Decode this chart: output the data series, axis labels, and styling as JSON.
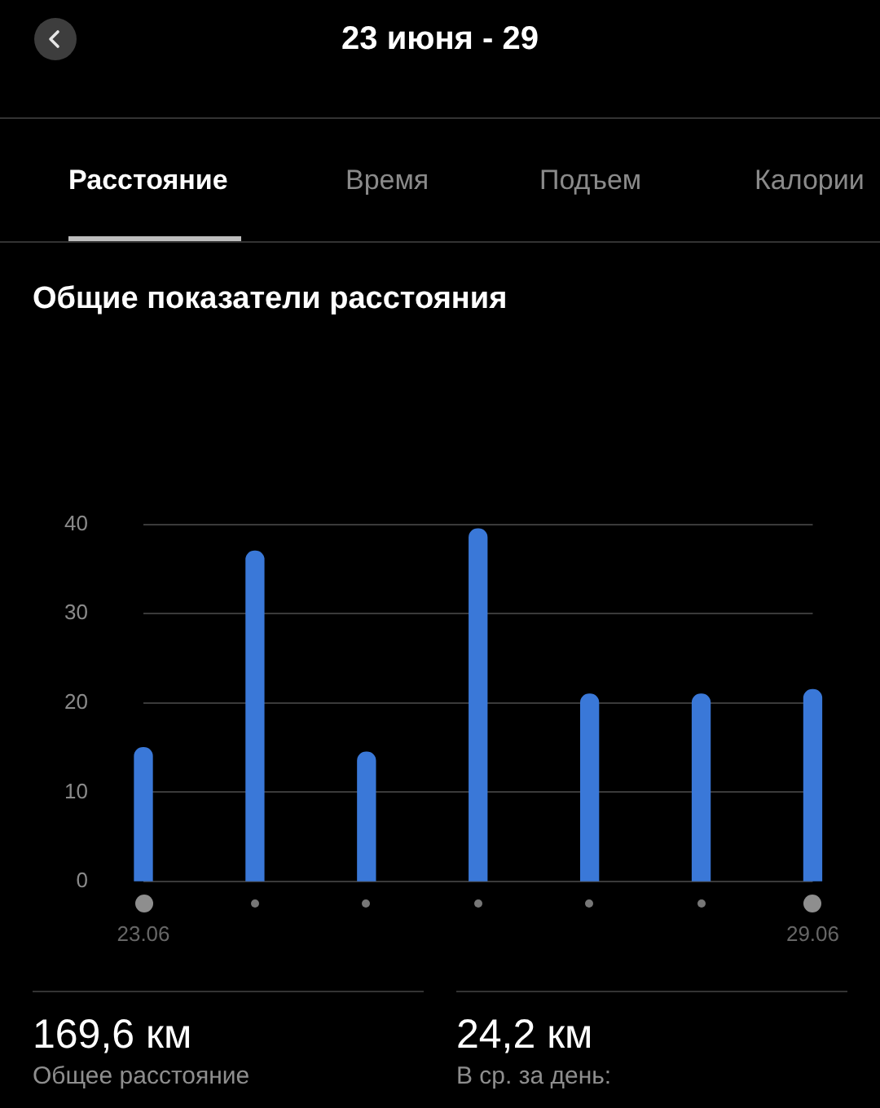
{
  "chart_data": {
    "type": "bar",
    "title": "Общие показатели расстояния",
    "subtitle": "23 июня - 29",
    "categories": [
      "23.06",
      null,
      null,
      null,
      null,
      null,
      "29.06"
    ],
    "values": [
      15,
      37,
      14.5,
      39.5,
      21,
      21,
      21.5
    ],
    "color": "#3a78d8",
    "ylim": [
      0,
      40
    ],
    "yticks": [
      0,
      10,
      20,
      30,
      40
    ],
    "grid": "y",
    "annotations": [
      "Расстояние",
      "Время",
      "Подъем",
      "Калории",
      "169,6 км",
      "Общее расстояние",
      "24,2 км",
      "В ср. за день:"
    ]
  }
}
